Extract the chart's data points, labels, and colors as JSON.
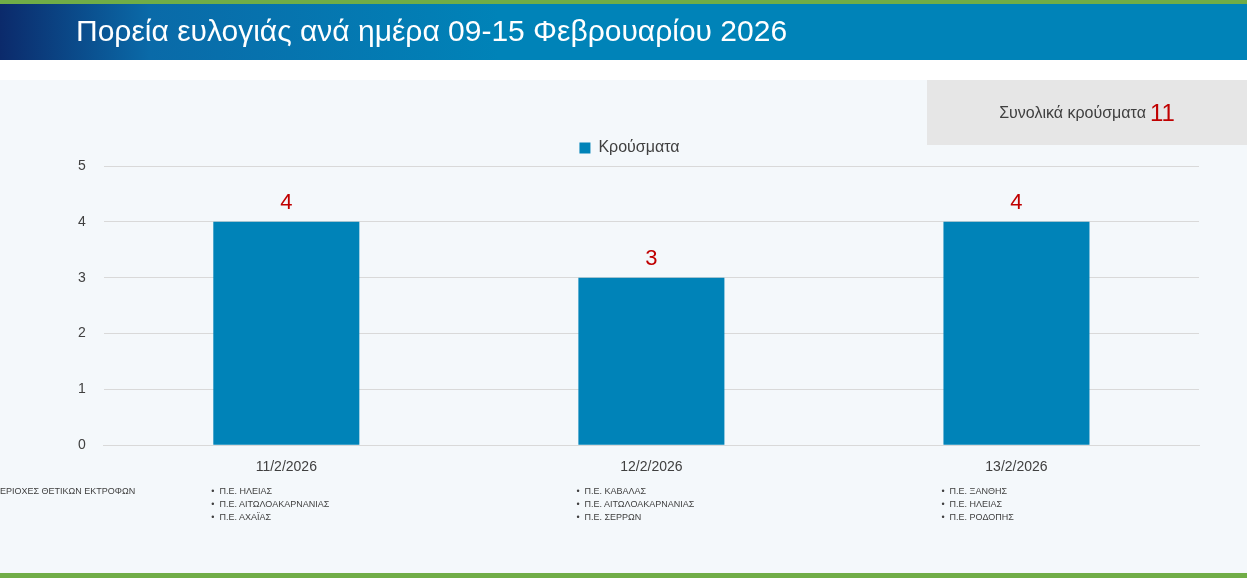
{
  "chart_data": {
    "type": "bar",
    "title": "Πορεία ευλογιάς ανά ημέρα 09-15 Φεβρουαρίου 2026",
    "categories": [
      "11/2/2026",
      "12/2/2026",
      "13/2/2026"
    ],
    "series": [
      {
        "name": "Κρούσματα",
        "color": "#0083b8",
        "values": [
          4,
          3,
          4
        ]
      }
    ],
    "ylim": [
      0,
      5
    ],
    "yticks": [
      0,
      1,
      2,
      3,
      4,
      5
    ],
    "grid": "y",
    "legend": "top",
    "data_labels": true,
    "annotations": [
      "Συνολικά κρούσματα 11",
      "ΕΡΙΟΧΕΣ ΘΕΤΙΚΩΝ ΕΚΤΡΟΦΩΝ",
      "•  Π.Ε. ΗΛΕΙΑΣ\n•  Π.Ε. ΑΙΤΩΛΟΑΚΑΡΝΑΝΙΑΣ\n•  Π.Ε. ΑΧΑΪΑΣ",
      "•  Π.Ε. ΚΑΒΑΛΑΣ\n•  Π.Ε. ΑΙΤΩΛΟΑΚΑΡΝΑΝΙΑΣ\n•  Π.Ε. ΣΕΡΡΩΝ",
      "•  Π.Ε. ΞΑΝΘΗΣ\n•  Π.Ε. ΗΛΕΙΑΣ\n•  Π.Ε. ΡΟΔΟΠΗΣ"
    ]
  }
}
